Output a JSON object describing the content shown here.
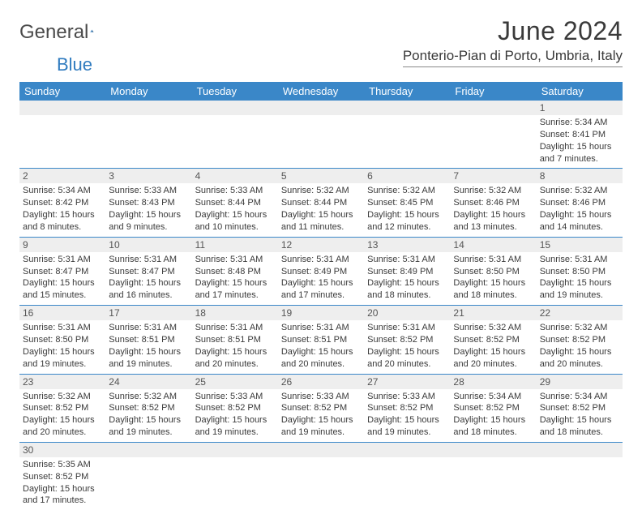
{
  "logo": {
    "text1": "General",
    "text2": "Blue",
    "sail_color1": "#2f7bbf",
    "sail_color2": "#1a4e7a"
  },
  "title": "June 2024",
  "location": "Ponterio-Pian di Porto, Umbria, Italy",
  "colors": {
    "header_bg": "#3a87c8",
    "header_text": "#ffffff",
    "daynum_bg": "#eeeeee",
    "border": "#3a87c8"
  },
  "day_names": [
    "Sunday",
    "Monday",
    "Tuesday",
    "Wednesday",
    "Thursday",
    "Friday",
    "Saturday"
  ],
  "weeks": [
    [
      null,
      null,
      null,
      null,
      null,
      null,
      {
        "n": "1",
        "sr": "5:34 AM",
        "ss": "8:41 PM",
        "dl": "15 hours and 7 minutes."
      }
    ],
    [
      {
        "n": "2",
        "sr": "5:34 AM",
        "ss": "8:42 PM",
        "dl": "15 hours and 8 minutes."
      },
      {
        "n": "3",
        "sr": "5:33 AM",
        "ss": "8:43 PM",
        "dl": "15 hours and 9 minutes."
      },
      {
        "n": "4",
        "sr": "5:33 AM",
        "ss": "8:44 PM",
        "dl": "15 hours and 10 minutes."
      },
      {
        "n": "5",
        "sr": "5:32 AM",
        "ss": "8:44 PM",
        "dl": "15 hours and 11 minutes."
      },
      {
        "n": "6",
        "sr": "5:32 AM",
        "ss": "8:45 PM",
        "dl": "15 hours and 12 minutes."
      },
      {
        "n": "7",
        "sr": "5:32 AM",
        "ss": "8:46 PM",
        "dl": "15 hours and 13 minutes."
      },
      {
        "n": "8",
        "sr": "5:32 AM",
        "ss": "8:46 PM",
        "dl": "15 hours and 14 minutes."
      }
    ],
    [
      {
        "n": "9",
        "sr": "5:31 AM",
        "ss": "8:47 PM",
        "dl": "15 hours and 15 minutes."
      },
      {
        "n": "10",
        "sr": "5:31 AM",
        "ss": "8:47 PM",
        "dl": "15 hours and 16 minutes."
      },
      {
        "n": "11",
        "sr": "5:31 AM",
        "ss": "8:48 PM",
        "dl": "15 hours and 17 minutes."
      },
      {
        "n": "12",
        "sr": "5:31 AM",
        "ss": "8:49 PM",
        "dl": "15 hours and 17 minutes."
      },
      {
        "n": "13",
        "sr": "5:31 AM",
        "ss": "8:49 PM",
        "dl": "15 hours and 18 minutes."
      },
      {
        "n": "14",
        "sr": "5:31 AM",
        "ss": "8:50 PM",
        "dl": "15 hours and 18 minutes."
      },
      {
        "n": "15",
        "sr": "5:31 AM",
        "ss": "8:50 PM",
        "dl": "15 hours and 19 minutes."
      }
    ],
    [
      {
        "n": "16",
        "sr": "5:31 AM",
        "ss": "8:50 PM",
        "dl": "15 hours and 19 minutes."
      },
      {
        "n": "17",
        "sr": "5:31 AM",
        "ss": "8:51 PM",
        "dl": "15 hours and 19 minutes."
      },
      {
        "n": "18",
        "sr": "5:31 AM",
        "ss": "8:51 PM",
        "dl": "15 hours and 20 minutes."
      },
      {
        "n": "19",
        "sr": "5:31 AM",
        "ss": "8:51 PM",
        "dl": "15 hours and 20 minutes."
      },
      {
        "n": "20",
        "sr": "5:31 AM",
        "ss": "8:52 PM",
        "dl": "15 hours and 20 minutes."
      },
      {
        "n": "21",
        "sr": "5:32 AM",
        "ss": "8:52 PM",
        "dl": "15 hours and 20 minutes."
      },
      {
        "n": "22",
        "sr": "5:32 AM",
        "ss": "8:52 PM",
        "dl": "15 hours and 20 minutes."
      }
    ],
    [
      {
        "n": "23",
        "sr": "5:32 AM",
        "ss": "8:52 PM",
        "dl": "15 hours and 20 minutes."
      },
      {
        "n": "24",
        "sr": "5:32 AM",
        "ss": "8:52 PM",
        "dl": "15 hours and 19 minutes."
      },
      {
        "n": "25",
        "sr": "5:33 AM",
        "ss": "8:52 PM",
        "dl": "15 hours and 19 minutes."
      },
      {
        "n": "26",
        "sr": "5:33 AM",
        "ss": "8:52 PM",
        "dl": "15 hours and 19 minutes."
      },
      {
        "n": "27",
        "sr": "5:33 AM",
        "ss": "8:52 PM",
        "dl": "15 hours and 19 minutes."
      },
      {
        "n": "28",
        "sr": "5:34 AM",
        "ss": "8:52 PM",
        "dl": "15 hours and 18 minutes."
      },
      {
        "n": "29",
        "sr": "5:34 AM",
        "ss": "8:52 PM",
        "dl": "15 hours and 18 minutes."
      }
    ],
    [
      {
        "n": "30",
        "sr": "5:35 AM",
        "ss": "8:52 PM",
        "dl": "15 hours and 17 minutes."
      },
      null,
      null,
      null,
      null,
      null,
      null
    ]
  ],
  "labels": {
    "sunrise": "Sunrise:",
    "sunset": "Sunset:",
    "daylight": "Daylight:"
  }
}
